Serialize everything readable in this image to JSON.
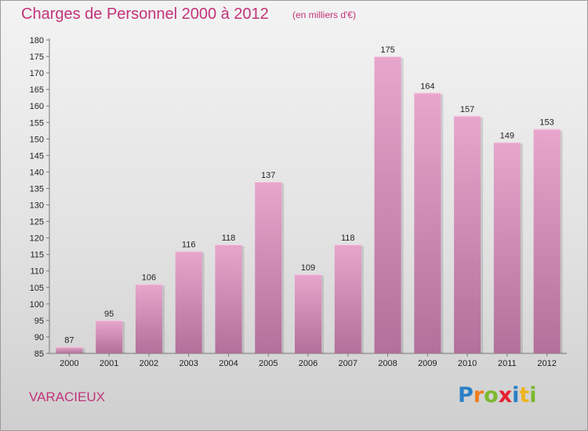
{
  "title": "Charges de Personnel 2000 à 2012",
  "subtitle": "(en milliers d'€)",
  "place": "VARACIEUX",
  "logo": {
    "letters": [
      "P",
      "r",
      "o",
      "x",
      "i",
      "t",
      "i"
    ],
    "colors": [
      "#2a7fc5",
      "#f07d1e",
      "#7cb82f",
      "#e5202e",
      "#2a7fc5",
      "#f0b41e",
      "#7cb82f"
    ]
  },
  "colors": {
    "accent": "#c2337a",
    "bar_top": "#e8a6cc",
    "bar_bottom": "#b2709a"
  },
  "chart_data": {
    "type": "bar",
    "categories": [
      "2000",
      "2001",
      "2002",
      "2003",
      "2004",
      "2005",
      "2006",
      "2007",
      "2008",
      "2009",
      "2010",
      "2011",
      "2012"
    ],
    "values": [
      87,
      95,
      106,
      116,
      118,
      137,
      109,
      118,
      175,
      164,
      157,
      149,
      153
    ],
    "title": "Charges de Personnel 2000 à 2012",
    "subtitle": "(en milliers d'€)",
    "xlabel": "",
    "ylabel": "",
    "ylim": [
      85,
      180
    ],
    "yticks": [
      85,
      90,
      95,
      100,
      105,
      110,
      115,
      120,
      125,
      130,
      135,
      140,
      145,
      150,
      155,
      160,
      165,
      170,
      175,
      180
    ],
    "grid": false,
    "data_labels": true
  }
}
